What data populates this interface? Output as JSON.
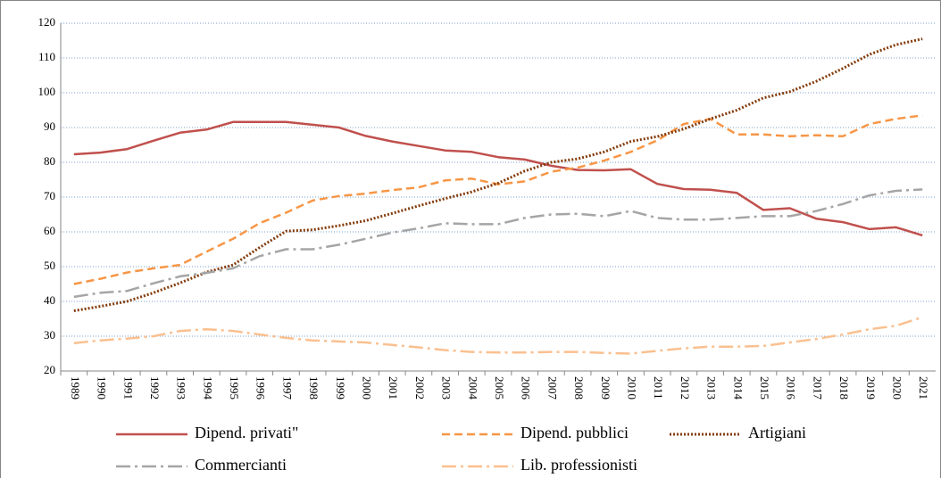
{
  "chart_data": {
    "type": "line",
    "categories": [
      "1989",
      "1990",
      "1991",
      "1992",
      "1993",
      "1994",
      "1995",
      "1996",
      "1997",
      "1998",
      "1999",
      "2000",
      "2001",
      "2002",
      "2003",
      "2004",
      "2005",
      "2006",
      "2007",
      "2008",
      "2009",
      "2010",
      "2011",
      "2012",
      "2013",
      "2014",
      "2015",
      "2016",
      "2017",
      "2018",
      "2019",
      "2020",
      "2021"
    ],
    "ylim": [
      20,
      120
    ],
    "yticks": [
      20,
      30,
      40,
      50,
      60,
      70,
      80,
      90,
      100,
      110,
      120
    ],
    "grid": true,
    "series": [
      {
        "name": "Dipend. privati\"",
        "color": "#c0504d",
        "dash": "solid",
        "values": [
          82.3,
          82.8,
          83.8,
          86.2,
          88.5,
          89.4,
          91.6,
          91.6,
          91.6,
          90.8,
          90.0,
          87.6,
          86.0,
          84.7,
          83.4,
          83.0,
          81.5,
          80.8,
          79.0,
          77.8,
          77.7,
          78.0,
          73.8,
          72.3,
          72.1,
          71.2,
          66.3,
          66.8,
          63.8,
          62.8,
          60.8,
          61.3,
          59.0
        ]
      },
      {
        "name": "Dipend. pubblici",
        "color": "#f79646",
        "dash": "dashed",
        "values": [
          45,
          46.5,
          48.3,
          49.5,
          50.5,
          54.3,
          58,
          62.5,
          65.5,
          69,
          70.3,
          71,
          72,
          72.8,
          74.8,
          75.3,
          73.7,
          74.5,
          77.3,
          78.5,
          80.5,
          83,
          86.3,
          91,
          92.5,
          88,
          88,
          87.5,
          87.8,
          87.5,
          91,
          92.5,
          93.5
        ]
      },
      {
        "name": "Artigiani",
        "color": "#843c0c",
        "dash": "dotted",
        "values": [
          37.3,
          38.6,
          40,
          42.5,
          45.3,
          48.4,
          50.5,
          55.5,
          60.2,
          60.6,
          61.8,
          63.2,
          65.3,
          67.5,
          69.6,
          71.5,
          74,
          77.5,
          80,
          81,
          83,
          86,
          87.4,
          89.6,
          92.5,
          95,
          98.5,
          100.3,
          103.3,
          107,
          111,
          113.8,
          115.5
        ]
      },
      {
        "name": "Commercianti",
        "color": "#a5a5a5",
        "dash": "dashdot",
        "values": [
          41.3,
          42.5,
          43,
          45.2,
          47.2,
          48.2,
          49.5,
          53,
          55,
          55,
          56.3,
          58,
          59.8,
          61,
          62.5,
          62.2,
          62.2,
          64,
          65,
          65.2,
          64.5,
          66,
          64,
          63.5,
          63.5,
          64,
          64.5,
          64.5,
          66,
          68,
          70.5,
          71.8,
          72.2
        ]
      },
      {
        "name": "Lib. professionisti",
        "color": "#fac090",
        "dash": "dashdot",
        "values": [
          28,
          28.8,
          29.3,
          30,
          31.5,
          32,
          31.5,
          30.5,
          29.5,
          28.8,
          28.5,
          28.2,
          27.5,
          26.8,
          26,
          25.5,
          25.3,
          25.3,
          25.5,
          25.5,
          25.2,
          25,
          25.8,
          26.5,
          27,
          27,
          27.2,
          28.2,
          29.2,
          30.5,
          32,
          33,
          35.5
        ]
      }
    ]
  }
}
